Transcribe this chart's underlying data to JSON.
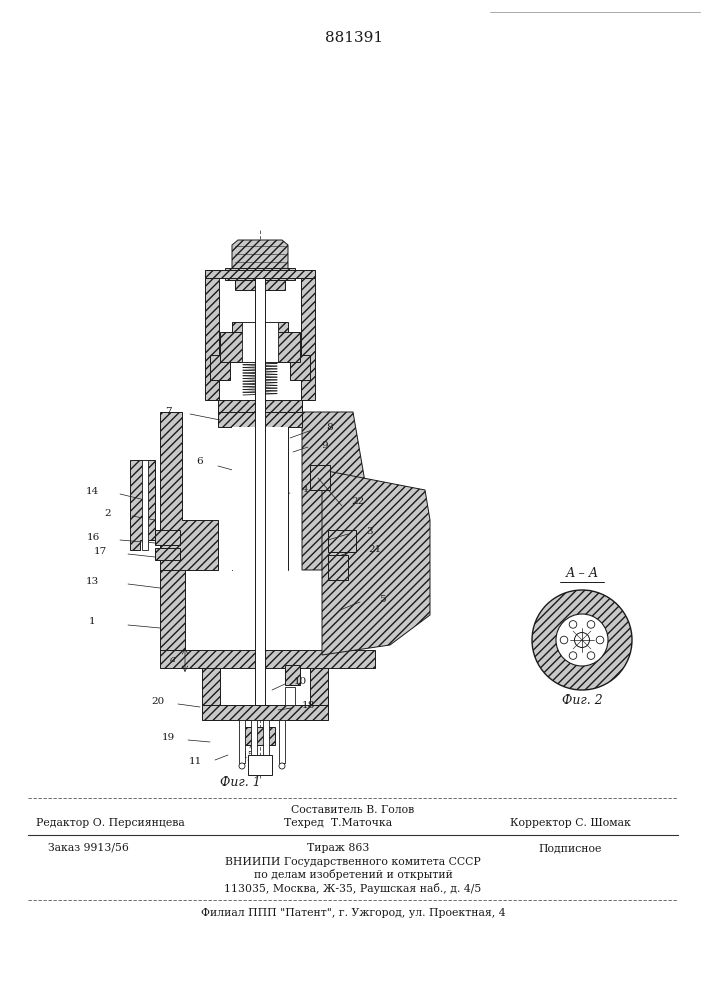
{
  "patent_number": "881391",
  "footer": {
    "sostavitel": "Составитель В. Голов",
    "redaktor": "Редактор О. Персиянцева",
    "tekhred": "Техред  Т.Маточка",
    "korrektor": "Корректор С. Шомак",
    "zakaz": "Заказ 9913/56",
    "tirazh": "Тираж 863",
    "podpisnoe": "Подписное",
    "vniiipi": "ВНИИПИ Государственного комитета СССР",
    "po_delam": "по делам изобретений и открытий",
    "address": "113035, Москва, Ж-35, Раушская наб., д. 4/5",
    "filial": "Филиал ППП \"Патент\", г. Ужгород, ул. Проектная, 4"
  },
  "fig1_label": "Фиг. 1",
  "fig2_label": "Фиг. 2",
  "aa_label": "А – А",
  "bg_color": "#ffffff",
  "text_color": "#1a1a1a",
  "ec": "#1a1a1a",
  "hc": "#c8c8c8",
  "lw_thin": 0.5,
  "lw_med": 0.8,
  "lw_thick": 1.3
}
